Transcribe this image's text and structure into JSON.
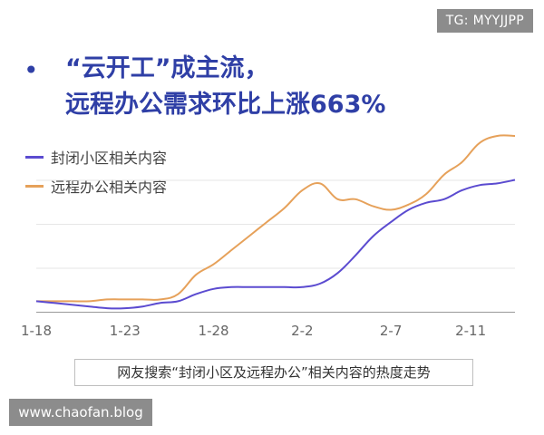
{
  "badge": "TG: MYYJJPP",
  "headline": {
    "bullet": "•",
    "line1": "“云开工”成主流，",
    "line2": "远程办公需求环比上涨663%"
  },
  "colors": {
    "headline": "#2f3fa6",
    "series_closed": "#5b4bd0",
    "series_remote": "#e6a15a",
    "grid": "#e6e6e6",
    "axis": "#666666"
  },
  "chart_data": {
    "type": "line",
    "title": "“云开工”成主流，远程办公需求环比上涨663%",
    "x": [
      0,
      1,
      2,
      3,
      4,
      5,
      6,
      7,
      8,
      9,
      10,
      11,
      12,
      13,
      14,
      15,
      16,
      17,
      18,
      19,
      20,
      21,
      22,
      23,
      24,
      25,
      26,
      27
    ],
    "xticks": [
      {
        "x": 0,
        "label": "1-18"
      },
      {
        "x": 5,
        "label": "1-23"
      },
      {
        "x": 10,
        "label": "1-28"
      },
      {
        "x": 15,
        "label": "2-2"
      },
      {
        "x": 20,
        "label": "2-7"
      },
      {
        "x": 24.5,
        "label": "2-11"
      }
    ],
    "ylim": [
      0,
      100
    ],
    "grid": true,
    "legend_position": "top-left",
    "series": [
      {
        "name": "封闭小区相关内容",
        "color": "#5b4bd0",
        "values": [
          6,
          5,
          4,
          3,
          2,
          2,
          3,
          5,
          6,
          10,
          13,
          14,
          14,
          14,
          14,
          14,
          16,
          22,
          32,
          43,
          51,
          58,
          62,
          64,
          69,
          72,
          73,
          75
        ]
      },
      {
        "name": "远程办公相关内容",
        "color": "#e6a15a",
        "values": [
          6,
          6,
          6,
          6,
          7,
          7,
          7,
          7,
          10,
          21,
          27,
          35,
          43,
          51,
          59,
          69,
          73,
          64,
          64,
          60,
          58,
          61,
          67,
          78,
          85,
          96,
          100,
          100
        ]
      }
    ]
  },
  "caption": "网友搜索“封闭小区及远程办公”相关内容的热度走势",
  "watermark": "www.chaofan.blog"
}
